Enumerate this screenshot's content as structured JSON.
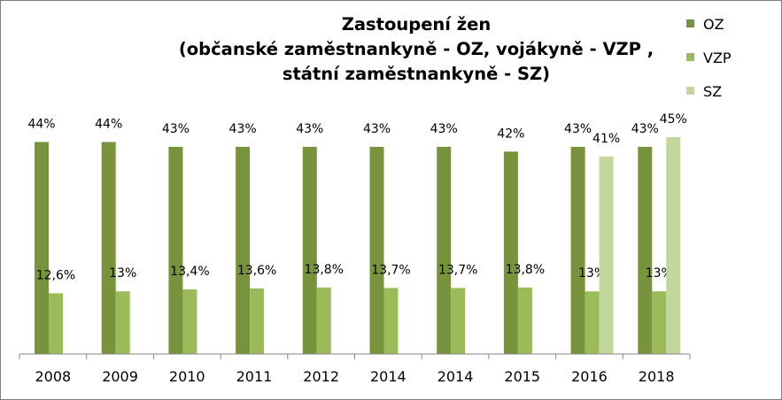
{
  "chart_data": {
    "type": "bar",
    "title": [
      "Zastoupení žen",
      "(občanské zaměstnankyně - OZ, vojákyně - VZP ,",
      "státní zaměstnankyně - SZ)"
    ],
    "categories": [
      "2008",
      "2009",
      "2010",
      "2011",
      "2012",
      "2014",
      "2014",
      "2015",
      "2016",
      "2018"
    ],
    "series": [
      {
        "name": "OZ",
        "color": "#77933c",
        "values": [
          44,
          44,
          43,
          43,
          43,
          43,
          43,
          42,
          43,
          43
        ],
        "labels": [
          "44%",
          "44%",
          "43%",
          "43%",
          "43%",
          "43%",
          "43%",
          "42%",
          "43%",
          "43%"
        ]
      },
      {
        "name": "VZP",
        "color": "#9bbb59",
        "values": [
          12.6,
          13,
          13.4,
          13.6,
          13.8,
          13.7,
          13.7,
          13.8,
          13,
          13
        ],
        "labels": [
          "12,6%",
          "13%",
          "13,4%",
          "13,6%",
          "13,8%",
          "13,7%",
          "13,7%",
          "13,8%",
          "13%",
          "13%"
        ]
      },
      {
        "name": "SZ",
        "color": "#c3d69b",
        "values": [
          null,
          null,
          null,
          null,
          null,
          null,
          null,
          null,
          41,
          45
        ],
        "labels": [
          "",
          "",
          "",
          "",
          "",
          "",
          "",
          "",
          "41%",
          "45%"
        ]
      }
    ],
    "ylim": [
      0,
      46
    ],
    "xlabel": "",
    "ylabel": "",
    "legend_position": "right",
    "grid": false
  }
}
